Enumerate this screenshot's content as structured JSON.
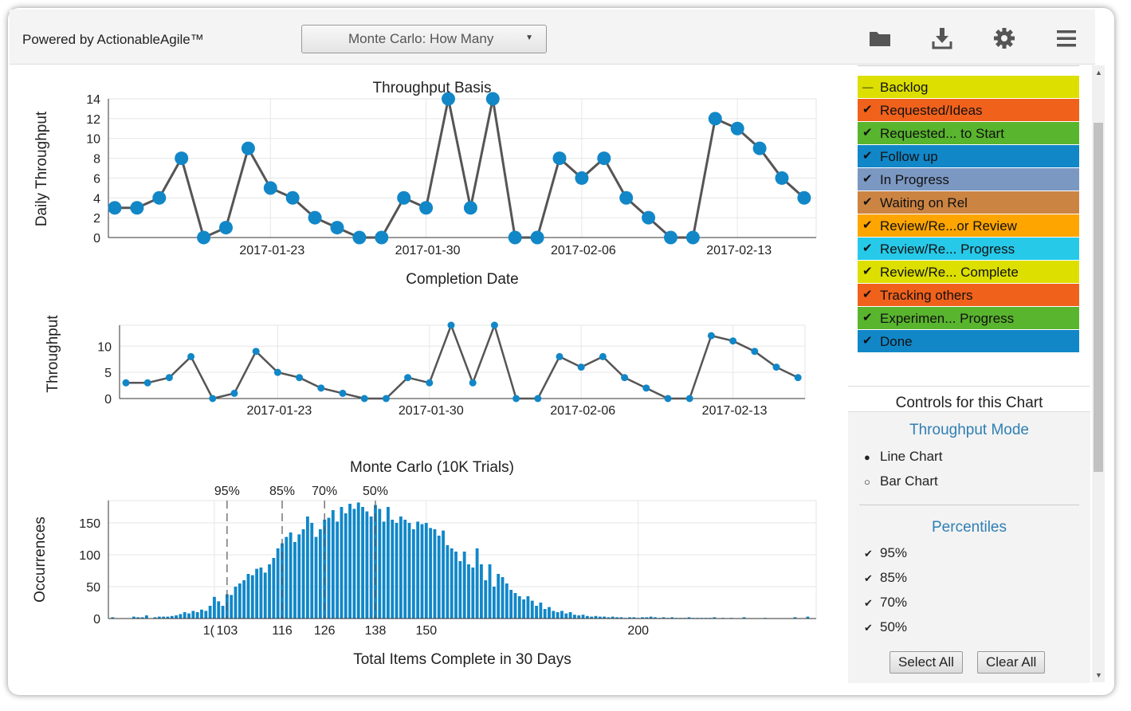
{
  "header": {
    "brand": "Powered by ActionableAgile™",
    "dropdown_selected": "Monte Carlo: How Many",
    "icons": [
      "folder-icon",
      "download-icon",
      "gear-icon",
      "menu-icon"
    ]
  },
  "legend": {
    "items": [
      {
        "label": "Backlog",
        "color": "#dcdf00",
        "checked": false
      },
      {
        "label": "Requested/Ideas",
        "color": "#f0611c",
        "checked": true
      },
      {
        "label": "Requested... to Start",
        "color": "#59b42e",
        "checked": true
      },
      {
        "label": "Follow up",
        "color": "#1187c8",
        "checked": true
      },
      {
        "label": "In Progress",
        "color": "#7b98c2",
        "checked": true
      },
      {
        "label": "Waiting on Rel",
        "color": "#cc8443",
        "checked": true
      },
      {
        "label": "Review/Re...or Review",
        "color": "#ffa500",
        "checked": true
      },
      {
        "label": "Review/Re... Progress",
        "color": "#27c9e8",
        "checked": true
      },
      {
        "label": "Review/Re... Complete",
        "color": "#dcdf00",
        "checked": true
      },
      {
        "label": "Tracking others",
        "color": "#f0611c",
        "checked": true
      },
      {
        "label": "Experimen... Progress",
        "color": "#59b42e",
        "checked": true
      },
      {
        "label": "Done",
        "color": "#1187c8",
        "checked": true
      }
    ]
  },
  "controls": {
    "title": "Controls for this Chart",
    "throughput_mode": {
      "title": "Throughput Mode",
      "options": [
        "Line Chart",
        "Bar Chart"
      ],
      "selected": "Line Chart"
    },
    "percentiles": {
      "title": "Percentiles",
      "options": [
        "95%",
        "85%",
        "70%",
        "50%"
      ]
    },
    "select_all": "Select All",
    "clear_all": "Clear All"
  },
  "chart_data": [
    {
      "type": "line",
      "title": "Throughput Basis",
      "xlabel": "Completion Date",
      "ylabel": "Daily Throughput",
      "x_start": "2017-01-16",
      "x_tick_labels": [
        "2017-01-23",
        "2017-01-30",
        "2017-02-06",
        "2017-02-13"
      ],
      "y_ticks": [
        0,
        2,
        4,
        6,
        8,
        10,
        12,
        14
      ],
      "ylim": [
        0,
        14
      ],
      "color": "#1187c8",
      "line_color": "#555555",
      "values": [
        3,
        3,
        4,
        8,
        0,
        1,
        9,
        5,
        4,
        2,
        1,
        0,
        0,
        4,
        3,
        14,
        3,
        14,
        0,
        0,
        8,
        6,
        8,
        4,
        2,
        0,
        0,
        12,
        11,
        9,
        6,
        4
      ]
    },
    {
      "type": "line",
      "title": "",
      "xlabel": "",
      "ylabel": "Throughput",
      "x_tick_labels": [
        "2017-01-23",
        "2017-01-30",
        "2017-02-06",
        "2017-02-13"
      ],
      "y_ticks": [
        0,
        5,
        10
      ],
      "ylim": [
        0,
        14
      ],
      "values": [
        3,
        3,
        4,
        8,
        0,
        1,
        9,
        5,
        4,
        2,
        1,
        0,
        0,
        4,
        3,
        14,
        3,
        14,
        0,
        0,
        8,
        6,
        8,
        4,
        2,
        0,
        0,
        12,
        11,
        9,
        6,
        4
      ]
    },
    {
      "type": "bar",
      "title": "Monte Carlo (10K Trials)",
      "xlabel": "Total Items Complete in 30 Days",
      "ylabel": "Occurrences",
      "y_ticks": [
        0,
        50,
        100,
        150
      ],
      "ylim": [
        0,
        185
      ],
      "xlim": [
        75,
        242
      ],
      "x_tick_labels": [
        "1(",
        "103",
        "116",
        "126",
        "138",
        "150",
        "200"
      ],
      "percentiles": [
        {
          "label": "95%",
          "x": 103
        },
        {
          "label": "85%",
          "x": 116
        },
        {
          "label": "70%",
          "x": 126
        },
        {
          "label": "50%",
          "x": 138
        }
      ],
      "color": "#1187c8",
      "x": [
        76,
        81,
        82,
        83,
        84,
        86,
        87,
        88,
        89,
        90,
        91,
        92,
        93,
        94,
        95,
        96,
        97,
        98,
        99,
        100,
        101,
        102,
        103,
        104,
        105,
        106,
        107,
        108,
        109,
        110,
        111,
        112,
        113,
        114,
        115,
        116,
        117,
        118,
        119,
        120,
        121,
        122,
        123,
        124,
        125,
        126,
        127,
        128,
        129,
        130,
        131,
        132,
        133,
        134,
        135,
        136,
        137,
        138,
        139,
        140,
        141,
        142,
        143,
        144,
        145,
        146,
        147,
        148,
        149,
        150,
        151,
        152,
        153,
        154,
        155,
        156,
        157,
        158,
        159,
        160,
        161,
        162,
        163,
        164,
        165,
        166,
        167,
        168,
        169,
        170,
        171,
        172,
        173,
        174,
        175,
        176,
        177,
        178,
        179,
        180,
        181,
        182,
        183,
        184,
        185,
        186,
        187,
        188,
        189,
        190,
        191,
        192,
        193,
        194,
        195,
        196,
        197,
        198,
        199,
        200,
        201,
        202,
        203,
        204,
        205,
        206,
        207,
        208,
        209,
        210,
        211,
        212,
        213,
        214,
        215,
        216,
        217,
        218,
        220,
        222,
        225,
        230,
        237,
        240
      ],
      "values": [
        2,
        3,
        2,
        2,
        5,
        2,
        3,
        3,
        3,
        4,
        5,
        7,
        10,
        8,
        12,
        10,
        14,
        12,
        20,
        34,
        27,
        20,
        38,
        37,
        50,
        55,
        60,
        70,
        68,
        78,
        80,
        72,
        85,
        95,
        110,
        118,
        128,
        135,
        120,
        132,
        140,
        160,
        150,
        128,
        140,
        155,
        158,
        170,
        152,
        175,
        165,
        180,
        172,
        182,
        175,
        168,
        160,
        178,
        172,
        152,
        175,
        155,
        150,
        160,
        155,
        150,
        140,
        152,
        148,
        150,
        142,
        140,
        130,
        138,
        115,
        110,
        105,
        90,
        105,
        85,
        80,
        110,
        85,
        60,
        85,
        50,
        70,
        65,
        55,
        45,
        40,
        35,
        30,
        35,
        28,
        20,
        25,
        15,
        18,
        12,
        10,
        12,
        8,
        10,
        6,
        5,
        6,
        4,
        3,
        4,
        3,
        3,
        2,
        3,
        2,
        2,
        1,
        2,
        2,
        1,
        2,
        2,
        3,
        2,
        1,
        2,
        1,
        2,
        1,
        1,
        1,
        2,
        1,
        1,
        1,
        1,
        1,
        2,
        1,
        1,
        2,
        1,
        2,
        3
      ]
    }
  ]
}
